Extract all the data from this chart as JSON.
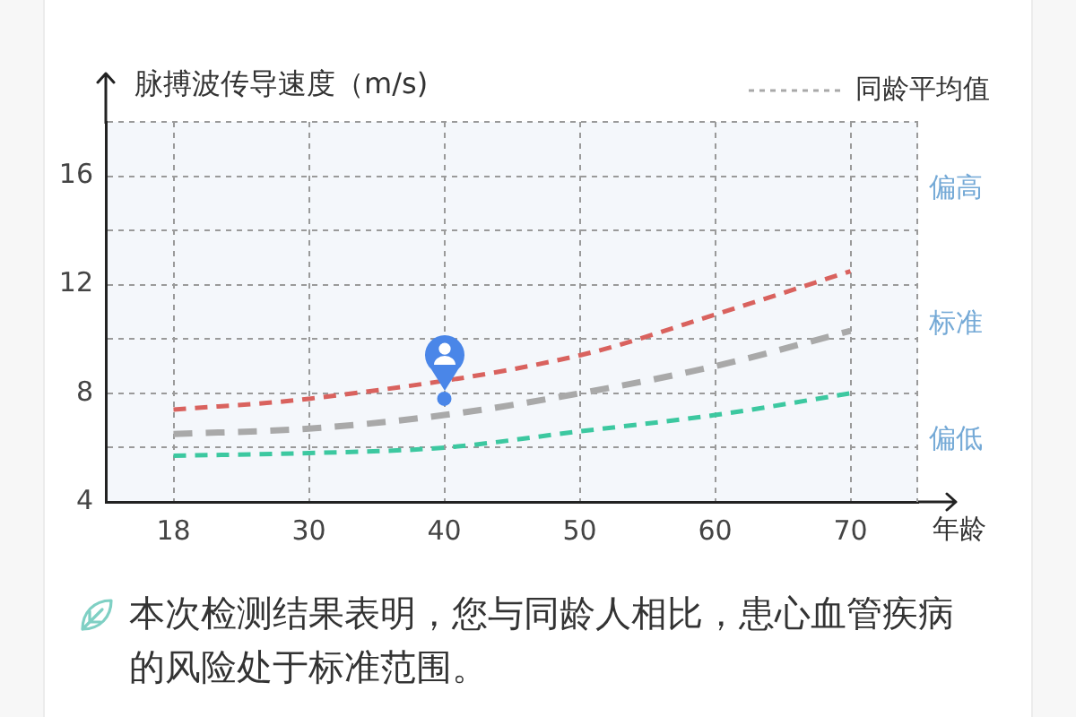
{
  "chart_data": {
    "type": "line",
    "ylabel": "脉搏波传导速度（m/s)",
    "xlabel": "年龄",
    "categories": [
      "18",
      "30",
      "40",
      "50",
      "60",
      "70"
    ],
    "series": [
      {
        "color": "#d9625e",
        "values": [
          7.4,
          7.8,
          null,
          9.4,
          10.9,
          12.5
        ]
      },
      {
        "name": "同龄平均值",
        "color": "#a9a9a9",
        "values": [
          6.5,
          6.7,
          7.2,
          8.0,
          9.0,
          10.3
        ]
      },
      {
        "color": "#3cc8a0",
        "values": [
          5.7,
          5.8,
          6.0,
          6.6,
          7.2,
          8.0
        ]
      },
      {
        "type": "scatter",
        "x": [
          "40"
        ],
        "values": [
          7.8
        ],
        "color": "#4a86e8",
        "marker": "circle"
      }
    ],
    "ylim": [
      4,
      18
    ],
    "yticks": [
      4,
      {
        "value": 6,
        "label": null
      },
      8,
      {
        "value": 10,
        "label": null
      },
      12,
      {
        "value": 14,
        "label": null
      },
      16,
      {
        "value": 18,
        "label": null
      }
    ],
    "grid": true,
    "legend": "top right",
    "marker": "none",
    "line_style": "dashed",
    "annotations": [
      "偏高",
      "标准",
      "偏低",
      "本次检测结果表明，您与同龄人相比，患心血管疾病的风险处于标准范围。"
    ]
  }
}
